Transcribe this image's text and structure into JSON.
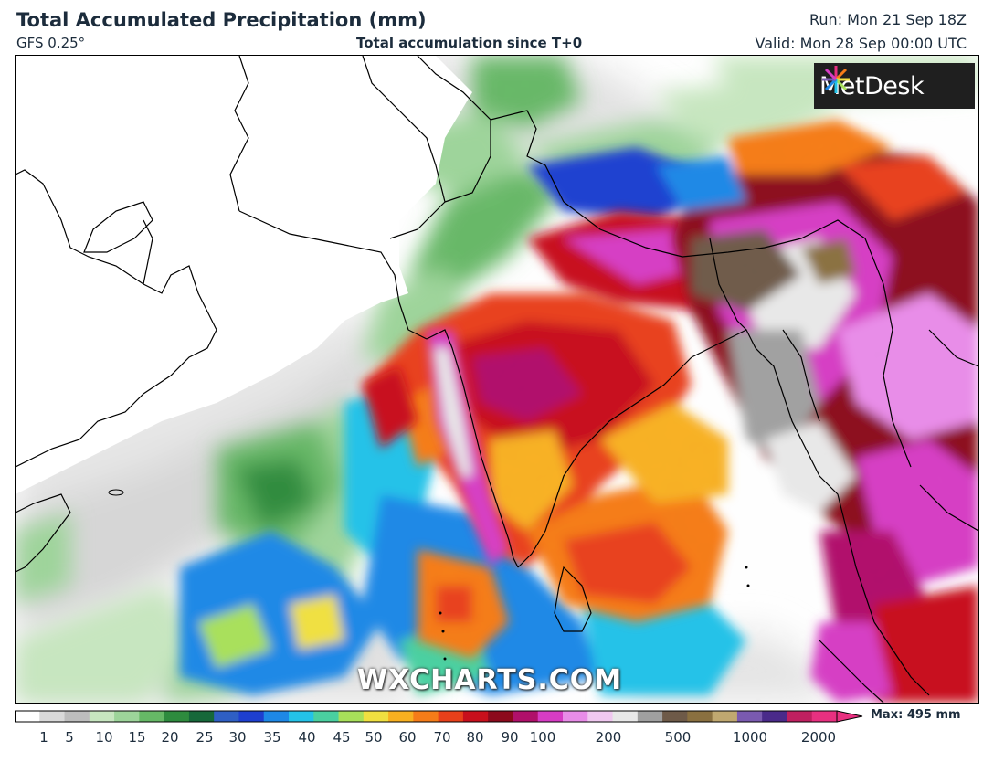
{
  "header": {
    "title": "Total Accumulated Precipitation (mm)",
    "model": "GFS 0.25°",
    "subtitle": "Total accumulation since T+0",
    "run": "Run: Mon 21 Sep 18Z",
    "valid": "Valid: Mon 28 Sep 00:00 UTC"
  },
  "logo": {
    "text": "MetDesk"
  },
  "watermark": "WXCHARTS.COM",
  "colorbar": {
    "max_label": "Max: 495 mm",
    "ticks": [
      "1",
      "5",
      "10",
      "15",
      "20",
      "25",
      "30",
      "35",
      "40",
      "45",
      "50",
      "60",
      "70",
      "80",
      "90",
      "100",
      "200",
      "500",
      "1000",
      "2000"
    ],
    "colors": [
      "#ffffff",
      "#d9d9d9",
      "#bdbdbd",
      "#c7e6c0",
      "#9dd49a",
      "#66b866",
      "#2e8b3e",
      "#16683a",
      "#2f5fc4",
      "#1e3fd0",
      "#1e88e6",
      "#23c2e8",
      "#4ad0a0",
      "#a8e05a",
      "#f0e040",
      "#f8b020",
      "#f57c18",
      "#e8401a",
      "#c8101c",
      "#8c0a1c",
      "#b0106a",
      "#d63cc4",
      "#e88ce8",
      "#f0c8f0",
      "#e8e8e8",
      "#a0a0a0",
      "#6e5a48",
      "#8a7040",
      "#c0a870",
      "#7a5ab0",
      "#4a2a8a",
      "#c02060",
      "#e83080"
    ]
  },
  "map": {
    "regions": "Arabian Sea, India, Bay of Bengal, Southeast Asia"
  }
}
